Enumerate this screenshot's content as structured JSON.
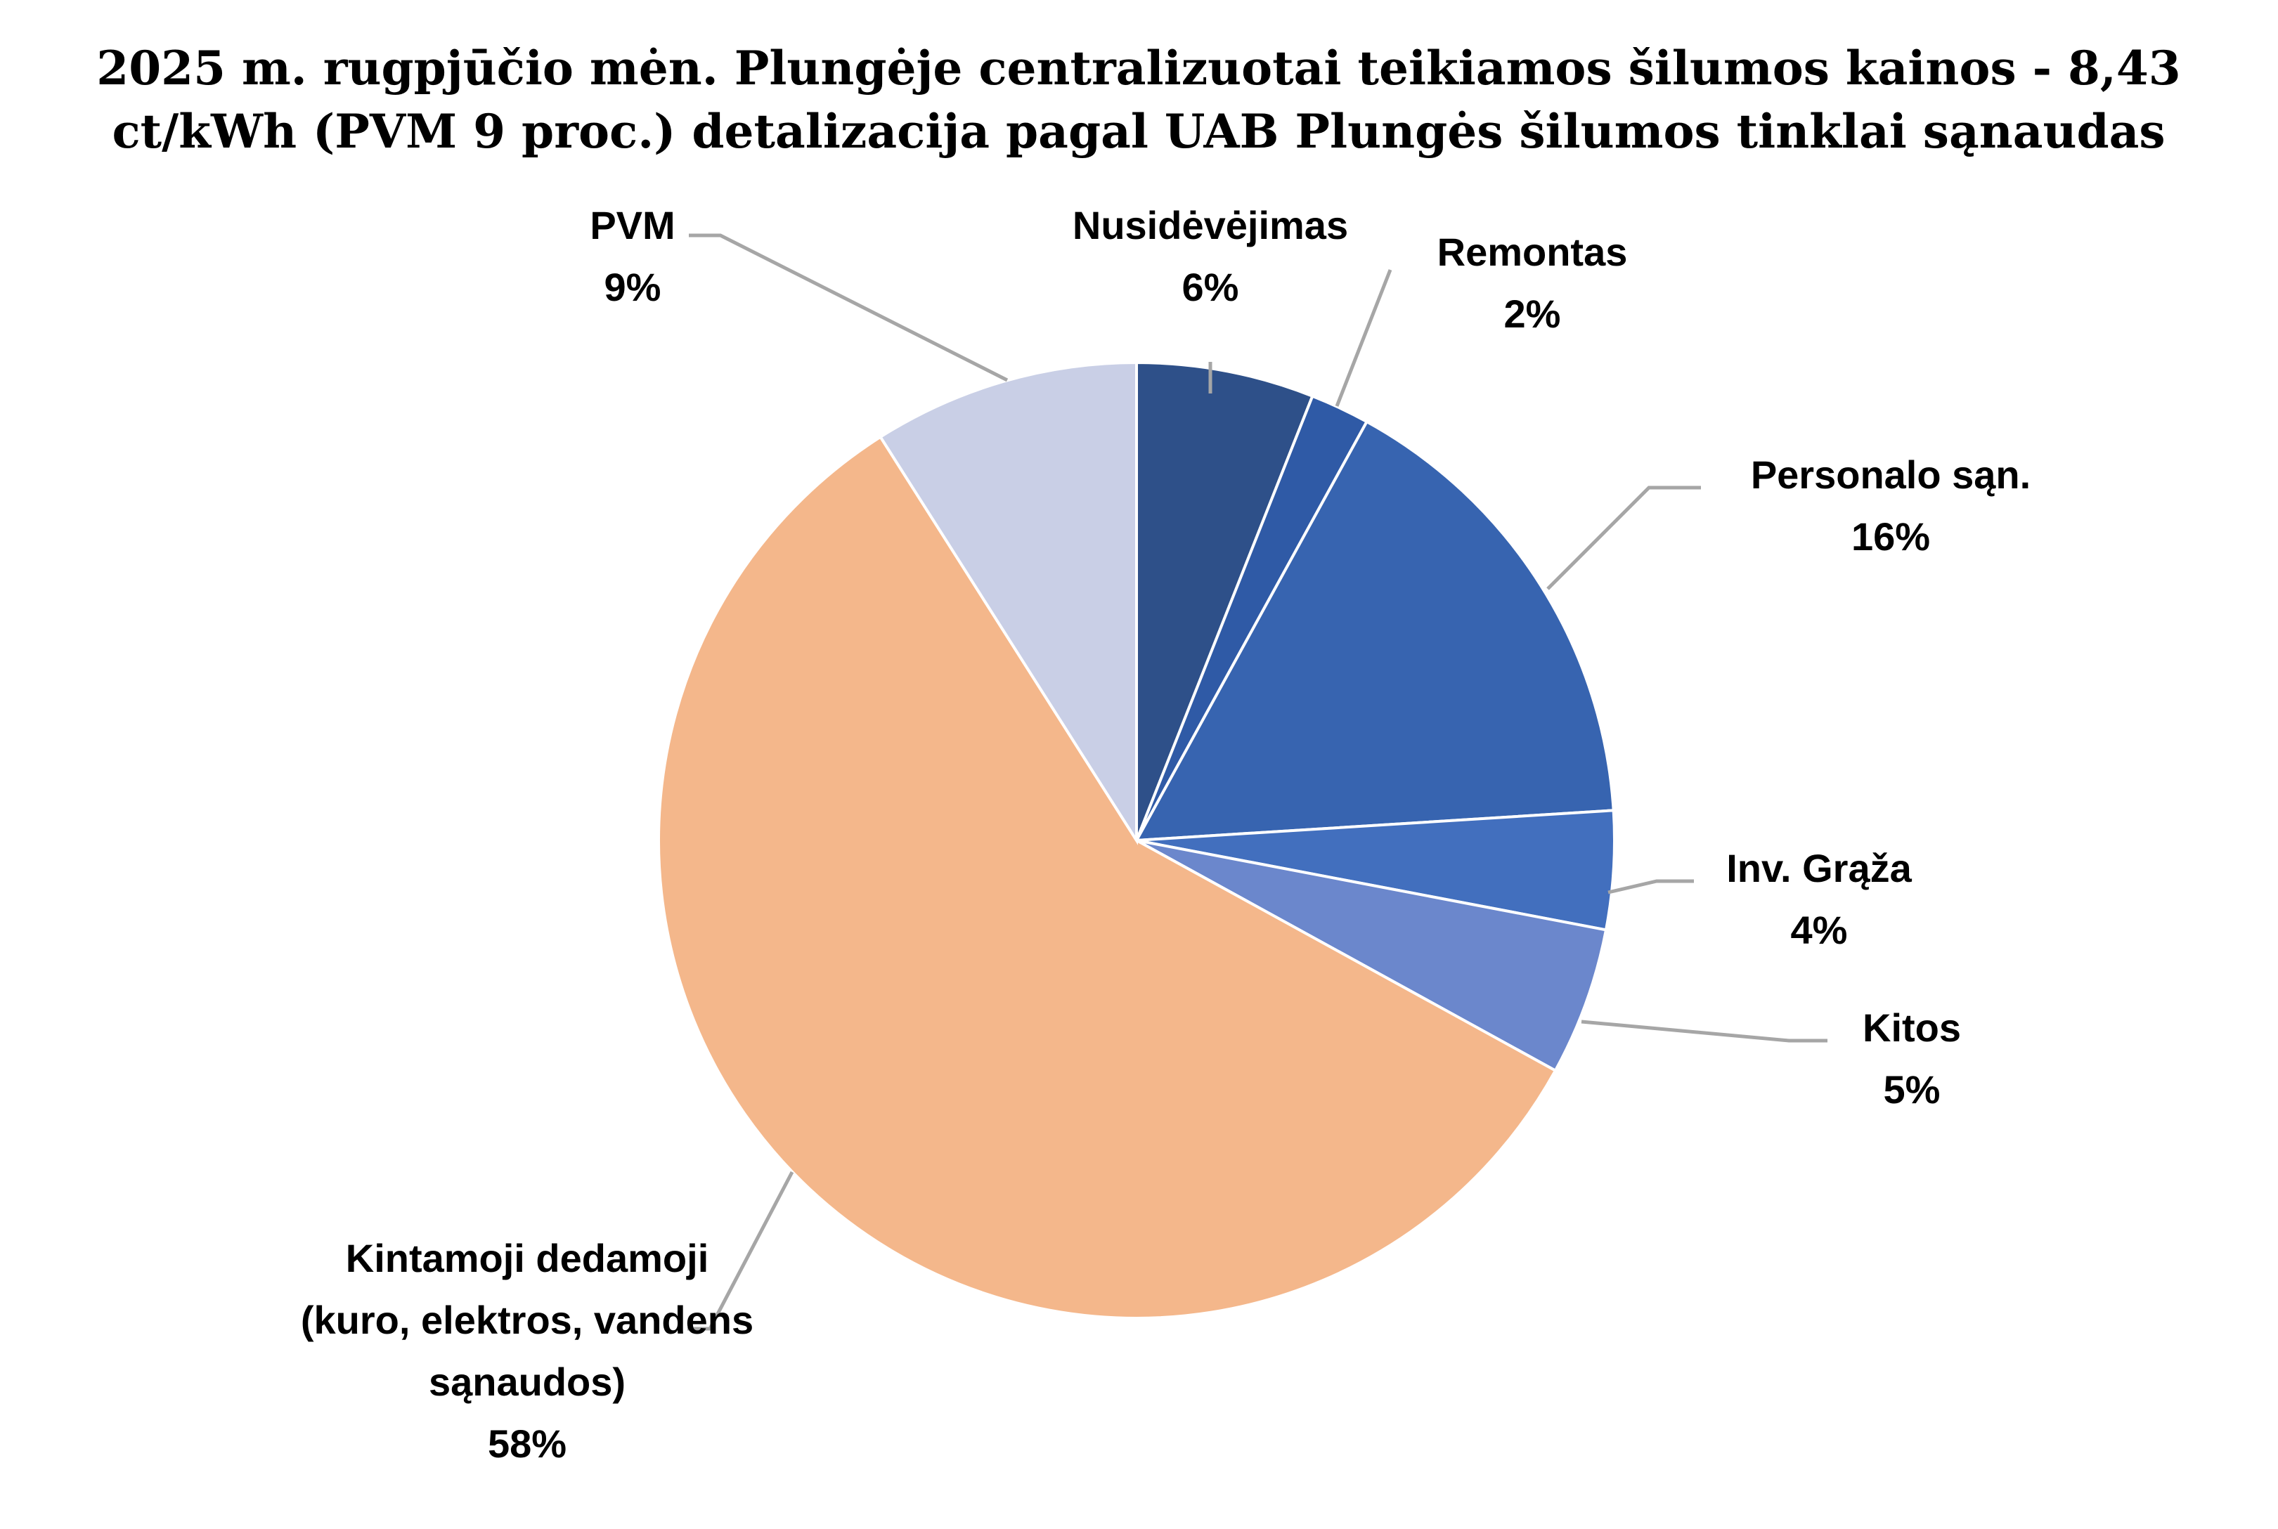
{
  "chart_data": {
    "type": "pie",
    "title": [
      "2025 m. rugpjūčio mėn. Plungėje centralizuotai teikiamos šilumos kainos - 8,43",
      "ct/kWh (PVM 9 proc.) detalizacija pagal UAB Plungės šilumos tinklai sąnaudas"
    ],
    "slices": [
      {
        "key": "nusidevejimas",
        "label": [
          "Nusidėvėjimas"
        ],
        "percent_label": "6%",
        "value": 6,
        "color": "#2e5089"
      },
      {
        "key": "remontas",
        "label": [
          "Remontas"
        ],
        "percent_label": "2%",
        "value": 2,
        "color": "#2f5aa6"
      },
      {
        "key": "personalo",
        "label": [
          "Personalo sąn."
        ],
        "percent_label": "16%",
        "value": 16,
        "color": "#3764b0"
      },
      {
        "key": "inv-graza",
        "label": [
          "Inv. Grąža"
        ],
        "percent_label": "4%",
        "value": 4,
        "color": "#426fbe"
      },
      {
        "key": "kitos",
        "label": [
          "Kitos"
        ],
        "percent_label": "5%",
        "value": 5,
        "color": "#6b87cc"
      },
      {
        "key": "kintamoji",
        "label": [
          "Kintamoji dedamoji",
          "(kuro, elektros, vandens",
          "sąnaudos)"
        ],
        "percent_label": "58%",
        "value": 58,
        "color": "#f4b78b"
      },
      {
        "key": "pvm",
        "label": [
          "PVM"
        ],
        "percent_label": "9%",
        "value": 9,
        "color": "#c9cfe6"
      }
    ]
  }
}
